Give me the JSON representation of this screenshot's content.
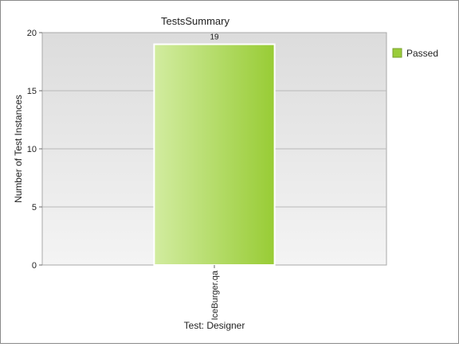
{
  "chart_data": {
    "type": "bar",
    "title": "TestsSummary",
    "xlabel": "Test: Designer",
    "ylabel": "Number of Test Instances",
    "categories": [
      "IceBurger.qa"
    ],
    "series": [
      {
        "name": "Passed",
        "values": [
          19
        ],
        "color": "#9ACD3A"
      }
    ],
    "ylim": [
      0,
      20
    ],
    "yticks": [
      0,
      5,
      10,
      15,
      20
    ],
    "data_labels": [
      "19"
    ],
    "grid": true,
    "legend_position": "right"
  }
}
